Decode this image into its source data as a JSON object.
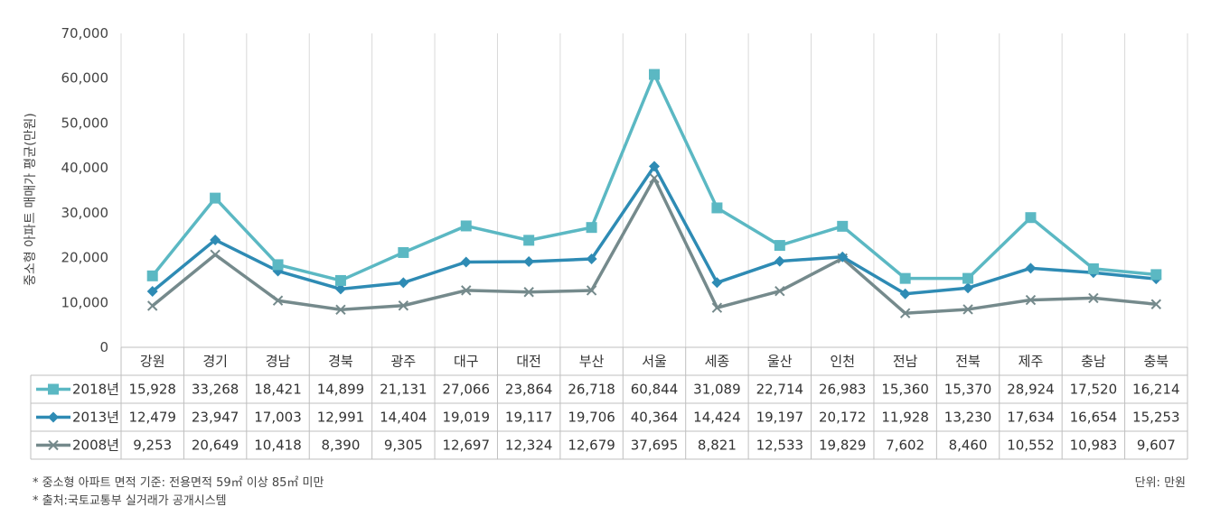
{
  "chart_data": {
    "type": "line",
    "ylabel": "중소형 아파트 매매가 평균(만원)",
    "ylim": [
      0,
      70000
    ],
    "yticks": [
      "0",
      "10,000",
      "20,000",
      "30,000",
      "40,000",
      "50,000",
      "60,000",
      "70,000"
    ],
    "ytick_values": [
      0,
      10000,
      20000,
      30000,
      40000,
      50000,
      60000,
      70000
    ],
    "grid": "vertical",
    "legend": "data-table-left",
    "categories": [
      "강원",
      "경기",
      "경남",
      "경북",
      "광주",
      "대구",
      "대전",
      "부산",
      "서울",
      "세종",
      "울산",
      "인천",
      "전남",
      "전북",
      "제주",
      "충남",
      "충북"
    ],
    "series": [
      {
        "name": "2018년",
        "color": "#5bb8c3",
        "marker": "square",
        "values": [
          15928,
          33268,
          18421,
          14899,
          21131,
          27066,
          23864,
          26718,
          60844,
          31089,
          22714,
          26983,
          15360,
          15370,
          28924,
          17520,
          16214
        ],
        "labels": [
          "15,928",
          "33,268",
          "18,421",
          "14,899",
          "21,131",
          "27,066",
          "23,864",
          "26,718",
          "60,844",
          "31,089",
          "22,714",
          "26,983",
          "15,360",
          "15,370",
          "28,924",
          "17,520",
          "16,214"
        ]
      },
      {
        "name": "2013년",
        "color": "#2e8bb4",
        "marker": "diamond",
        "values": [
          12479,
          23947,
          17003,
          12991,
          14404,
          19019,
          19117,
          19706,
          40364,
          14424,
          19197,
          20172,
          11928,
          13230,
          17634,
          16654,
          15253
        ],
        "labels": [
          "12,479",
          "23,947",
          "17,003",
          "12,991",
          "14,404",
          "19,019",
          "19,117",
          "19,706",
          "40,364",
          "14,424",
          "19,197",
          "20,172",
          "11,928",
          "13,230",
          "17,634",
          "16,654",
          "15,253"
        ]
      },
      {
        "name": "2008년",
        "color": "#758a8c",
        "marker": "x",
        "values": [
          9253,
          20649,
          10418,
          8390,
          9305,
          12697,
          12324,
          12679,
          37695,
          8821,
          12533,
          19829,
          7602,
          8460,
          10552,
          10983,
          9607
        ],
        "labels": [
          "9,253",
          "20,649",
          "10,418",
          "8,390",
          "9,305",
          "12,697",
          "12,324",
          "12,679",
          "37,695",
          "8,821",
          "12,533",
          "19,829",
          "7,602",
          "8,460",
          "10,552",
          "10,983",
          "9,607"
        ]
      }
    ]
  },
  "notes": {
    "note1": "* 중소형 아파트 면적 기준: 전용면적 59㎡ 이상 85㎡ 미만",
    "note2": "* 출처:국토교통부 실거래가 공개시스템",
    "unit": "단위: 만원"
  }
}
